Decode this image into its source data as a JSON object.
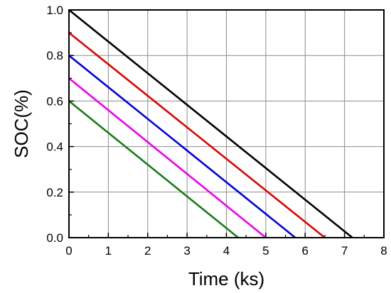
{
  "chart_data": {
    "type": "line",
    "title": "",
    "xlabel": "Time (ks)",
    "ylabel": "SOC(%)",
    "xlim": [
      0,
      8
    ],
    "ylim": [
      0,
      1.0
    ],
    "grid": true,
    "x_ticks": [
      "0",
      "1",
      "2",
      "3",
      "4",
      "5",
      "6",
      "7",
      "8"
    ],
    "y_ticks": [
      "0.0",
      "0.2",
      "0.4",
      "0.6",
      "0.8",
      "1.0"
    ],
    "series": [
      {
        "color": "#000000",
        "points": [
          [
            0,
            1.0
          ],
          [
            7.2,
            0.0
          ]
        ]
      },
      {
        "color": "#e00000",
        "points": [
          [
            0,
            0.9
          ],
          [
            6.5,
            0.0
          ]
        ]
      },
      {
        "color": "#0000dd",
        "points": [
          [
            0,
            0.8
          ],
          [
            5.75,
            0.0
          ]
        ]
      },
      {
        "color": "#ee00ee",
        "points": [
          [
            0,
            0.7
          ],
          [
            5.0,
            0.0
          ]
        ]
      },
      {
        "color": "#1a7a1a",
        "points": [
          [
            0,
            0.6
          ],
          [
            4.3,
            0.0
          ]
        ]
      }
    ]
  }
}
